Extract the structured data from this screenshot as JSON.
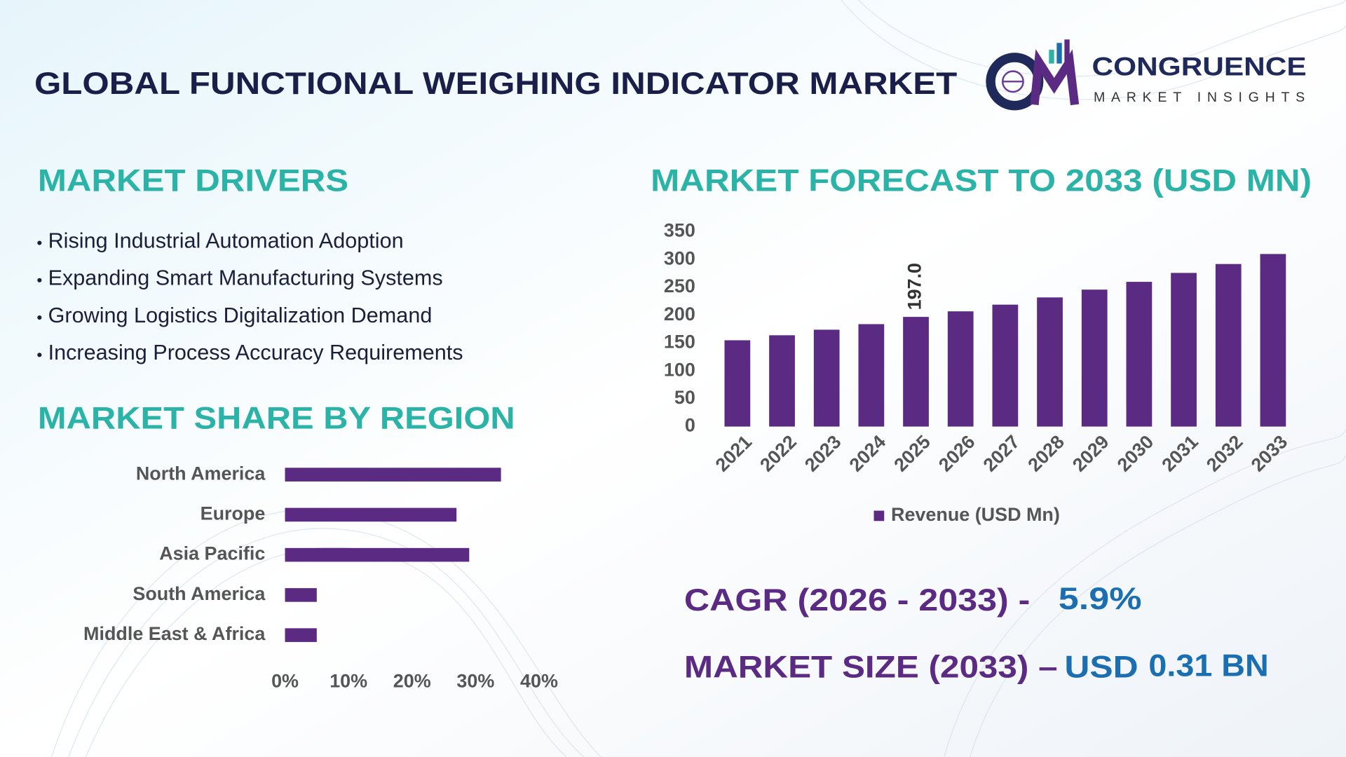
{
  "header": {
    "title": "GLOBAL FUNCTIONAL WEIGHING INDICATOR MARKET",
    "brand": "CONGRUENCE",
    "tagline": "MARKET INSIGHTS"
  },
  "drivers": {
    "heading": "MARKET DRIVERS",
    "items": [
      "Rising Industrial Automation Adoption",
      "Expanding Smart Manufacturing Systems",
      "Growing Logistics Digitalization Demand",
      "Increasing Process Accuracy Requirements"
    ]
  },
  "chart_data": [
    {
      "type": "hbar",
      "title": "MARKET SHARE BY REGION",
      "categories": [
        "North America",
        "Europe",
        "Asia Pacific",
        "South America",
        "Middle East & Africa"
      ],
      "values": [
        34,
        27,
        29,
        5,
        5
      ],
      "color": "#5b2a82",
      "xlim": [
        0,
        40
      ],
      "xticks": [
        {
          "value": 0,
          "label": "0%"
        },
        {
          "value": 10,
          "label": "10%"
        },
        {
          "value": 20,
          "label": "20%"
        },
        {
          "value": 30,
          "label": "30%"
        },
        {
          "value": 40,
          "label": "40%"
        }
      ]
    },
    {
      "type": "bar",
      "title": "MARKET FORECAST TO 2033 (USD MN)",
      "categories": [
        "2021",
        "2022",
        "2023",
        "2024",
        "2025",
        "2026",
        "2027",
        "2028",
        "2029",
        "2030",
        "2031",
        "2032",
        "2033"
      ],
      "series": [
        {
          "name": "Revenue (USD Mn)",
          "color": "#5b2a82",
          "values": [
            155,
            164,
            174,
            184,
            197,
            207,
            219,
            232,
            246,
            260,
            276,
            292,
            310
          ],
          "value_labels": [
            null,
            null,
            null,
            null,
            "197.0",
            null,
            null,
            null,
            null,
            null,
            null,
            null,
            null
          ]
        }
      ],
      "ylim": [
        0,
        350
      ],
      "yticks": [
        0,
        50,
        100,
        150,
        200,
        250,
        300,
        350
      ],
      "legend": "bottom"
    }
  ],
  "highlights": {
    "cagr_label": "CAGR (2026 - 2033) -",
    "cagr_value": "5.9%",
    "size_label": "MARKET SIZE (2033) –",
    "size_currency": "USD",
    "size_value": "0.31 BN"
  }
}
